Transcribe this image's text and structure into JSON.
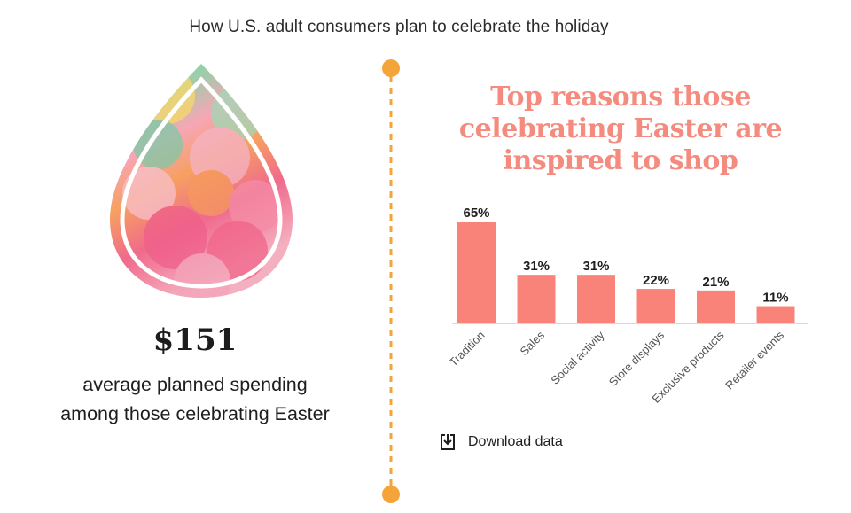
{
  "header": {
    "title": "How U.S. adult consumers plan to celebrate the holiday"
  },
  "left": {
    "amount": "$151",
    "caption_line1": "average planned spending",
    "caption_line2": "among those celebrating Easter"
  },
  "colors": {
    "bar": "#f98379",
    "title": "#f58b7f",
    "divider": "#f5a43a"
  },
  "chart_data": {
    "type": "bar",
    "title": "Top reasons those celebrating Easter are inspired to shop",
    "title_lines": [
      "Top reasons those",
      "celebrating Easter are",
      "inspired to shop"
    ],
    "categories": [
      "Tradition",
      "Sales",
      "Social activity",
      "Store displays",
      "Exclusive products",
      "Retailer events"
    ],
    "values": [
      65,
      31,
      31,
      22,
      21,
      11
    ],
    "value_labels": [
      "65%",
      "31%",
      "31%",
      "22%",
      "21%",
      "11%"
    ],
    "ylim": [
      0,
      65
    ],
    "grid": false
  },
  "download": {
    "label": "Download data",
    "icon": "download-icon"
  }
}
